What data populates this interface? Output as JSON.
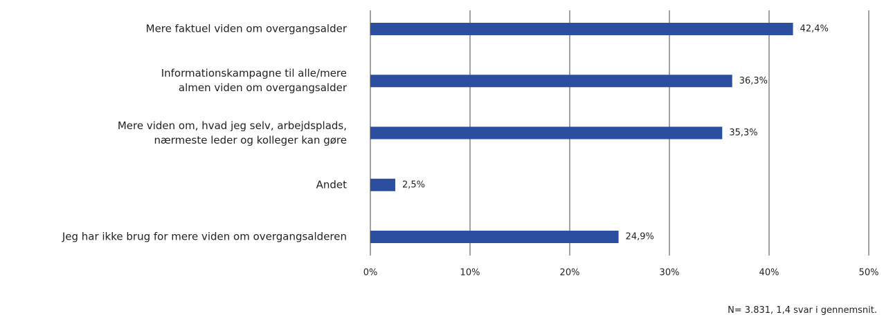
{
  "chart_data": {
    "type": "hbar",
    "categories": [
      "Mere faktuel viden om overgangsalder",
      "Informationskampagne til alle/mere\nalmen viden om overgangsalder",
      "Mere viden om, hvad jeg selv, arbejdsplads,\nnærmeste leder og kolleger kan gøre",
      "Andet",
      "Jeg har ikke brug for mere viden om overgangsalderen"
    ],
    "values": [
      42.4,
      36.3,
      35.3,
      2.5,
      24.9
    ],
    "value_labels": [
      "42,4%",
      "36,3%",
      "35,3%",
      "2,5%",
      "24,9%"
    ],
    "color": "#2b4f9e",
    "xlim": [
      0,
      50
    ],
    "xticks": [
      {
        "value": 0,
        "label": "0%"
      },
      {
        "value": 10,
        "label": "10%"
      },
      {
        "value": 20,
        "label": "20%"
      },
      {
        "value": 30,
        "label": "30%"
      },
      {
        "value": 40,
        "label": "40%"
      },
      {
        "value": 50,
        "label": "50%"
      }
    ],
    "grid": true,
    "note": "N= 3.831, 1,4 svar i gennemsnit."
  }
}
